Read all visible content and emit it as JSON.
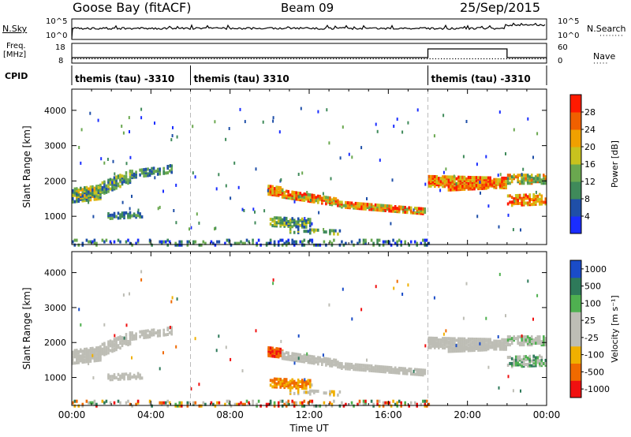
{
  "header": {
    "station": "Goose Bay (fitACF)",
    "beam": "Beam 09",
    "date": "25/Sep/2015"
  },
  "noise_panel": {
    "left_label": "N.Sky",
    "left_ticks": [
      "10^5",
      "10^0"
    ],
    "right_label": "N.Search",
    "right_ticks": [
      "10^5",
      "10^0"
    ]
  },
  "freq_panel": {
    "left_label_line1": "Freq.",
    "left_label_line2": "[MHz]",
    "left_ticks": [
      "18",
      "8"
    ],
    "right_label": "Nave",
    "right_ticks": [
      "60",
      "0"
    ]
  },
  "cpid_panel": {
    "label": "CPID",
    "segments": [
      {
        "text": "themis (tau) -3310",
        "start_hour": 0
      },
      {
        "text": "themis (tau) 3310",
        "start_hour": 6
      },
      {
        "text": "themis (tau) -3310",
        "start_hour": 18
      }
    ]
  },
  "colors": {
    "power_scale": [
      "#1a2dff",
      "#1f4fa8",
      "#3f8a5a",
      "#6aa84f",
      "#c8c21e",
      "#f0a000",
      "#f06000",
      "#ff1a00"
    ],
    "velocity_scale": [
      "#1a4cc8",
      "#2e7a5a",
      "#4fb050",
      "#bdbdb5",
      "#bdbdb5",
      "#f0b000",
      "#f06a00",
      "#f01010"
    ]
  },
  "chart_data": [
    {
      "type": "heatmap",
      "name": "power",
      "ylabel": "Slant Range [km]",
      "ylim": [
        200,
        4600
      ],
      "yticks": [
        "1000",
        "2000",
        "3000",
        "4000"
      ],
      "xlim": [
        0,
        24
      ],
      "colorbar_label": "Power [dB]",
      "colorbar_ticks": [
        "4",
        "8",
        "12",
        "16",
        "20",
        "24",
        "28"
      ],
      "colorbar_range": [
        0,
        32
      ]
    },
    {
      "type": "heatmap",
      "name": "velocity",
      "ylabel": "Slant Range [km]",
      "ylim": [
        200,
        4600
      ],
      "yticks": [
        "1000",
        "2000",
        "3000",
        "4000"
      ],
      "xlim": [
        0,
        24
      ],
      "xlabel": "Time UT",
      "xticks": [
        "00:00",
        "04:00",
        "08:00",
        "12:00",
        "16:00",
        "20:00",
        "00:00"
      ],
      "colorbar_label": "Velocity [m s⁻¹]",
      "colorbar_ticks": [
        "1000",
        "500",
        "100",
        "25",
        "-25",
        "-100",
        "-500",
        "-1000"
      ]
    }
  ]
}
